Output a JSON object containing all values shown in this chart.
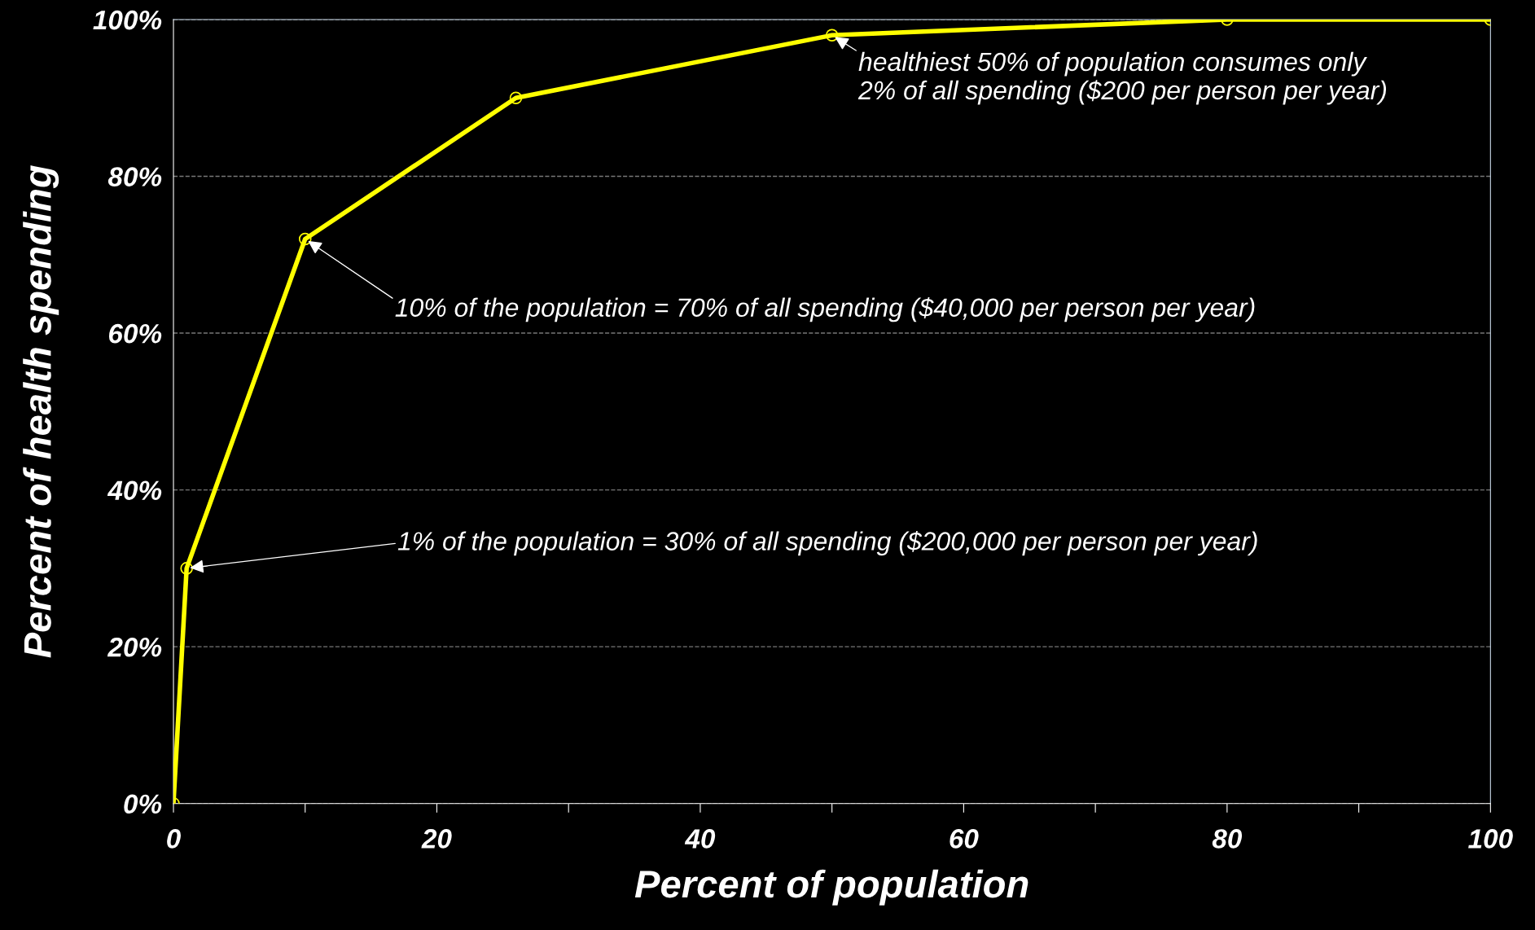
{
  "chart_data": {
    "type": "line",
    "xlabel": "Percent of population",
    "ylabel": "Percent of health spending",
    "x": [
      0,
      1,
      10,
      26,
      50,
      80,
      100
    ],
    "series": [
      {
        "color": "#ffff00",
        "values": [
          0,
          30,
          72,
          90,
          98,
          100,
          100
        ]
      }
    ],
    "xlim": [
      0,
      100
    ],
    "ylim": [
      0,
      100
    ],
    "xticks": [
      0,
      {
        "value": 10,
        "label": null
      },
      20,
      {
        "value": 30,
        "label": null
      },
      40,
      {
        "value": 50,
        "label": null
      },
      60,
      {
        "value": 70,
        "label": null
      },
      80,
      {
        "value": 90,
        "label": null
      },
      100
    ],
    "yticks": [
      {
        "value": 0,
        "label": "0%"
      },
      {
        "value": 20,
        "label": "20%"
      },
      {
        "value": 40,
        "label": "40%"
      },
      {
        "value": 60,
        "label": "60%"
      },
      {
        "value": 80,
        "label": "80%"
      },
      {
        "value": 100,
        "label": "100%"
      }
    ],
    "grid": "y",
    "marker": "circle",
    "line_style": "solid",
    "annotations": [
      {
        "text": "healthiest 50% of population consumes only\n2% of all spending ($200 per person per year)",
        "x": 50,
        "y": 98
      },
      {
        "text": "10% of the population = 70% of all spending ($40,000 per person per year)",
        "x": 10,
        "y": 72
      },
      {
        "text": "1% of the population = 30% of all spending ($200,000 per person per year)",
        "x": 1,
        "y": 30
      }
    ]
  }
}
